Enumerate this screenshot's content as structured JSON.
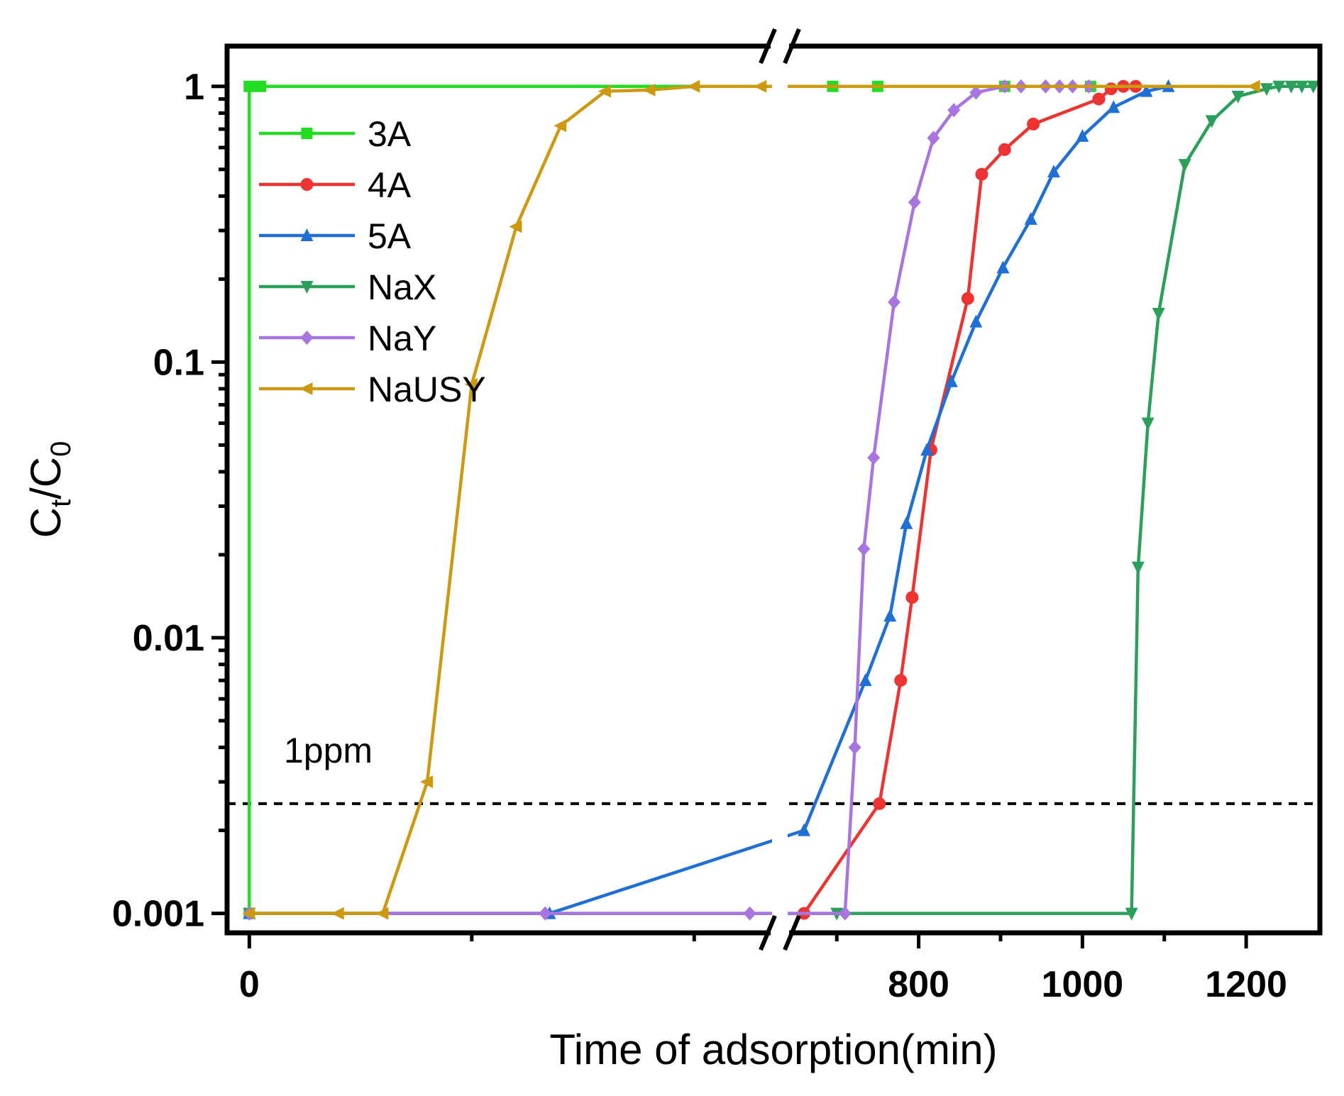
{
  "chart_data": {
    "type": "line",
    "title": "",
    "xlabel": "Time of adsorption(min)",
    "ylabel_main": "C",
    "ylabel_sub1": "t",
    "ylabel_mid": "/C",
    "ylabel_sub2": "0",
    "yscale": "log",
    "ylim": [
      0.00085,
      1.4
    ],
    "xaxis_break": {
      "before_range": [
        -10,
        235
      ],
      "after_range": [
        640,
        1290
      ]
    },
    "xticks_labeled": [
      "0",
      "800",
      "1000",
      "1200"
    ],
    "xtick_values": [
      0,
      800,
      1000,
      1200
    ],
    "yticks_labeled": [
      "1",
      "0.1",
      "0.01",
      "0.001"
    ],
    "ytick_values": [
      1,
      0.1,
      0.01,
      0.001
    ],
    "legend_position": "top-left",
    "threshold": {
      "value": 0.0025,
      "label": "1ppm"
    },
    "series": [
      {
        "name": "3A",
        "color": "#22dd22",
        "marker": "square",
        "x": [
          0,
          0,
          5,
          695,
          750,
          905,
          1010
        ],
        "y": [
          0.001,
          1,
          1,
          1,
          1,
          1,
          1
        ]
      },
      {
        "name": "4A",
        "color": "#ee3333",
        "marker": "circle",
        "x": [
          660,
          752,
          778,
          792,
          815,
          860,
          877,
          905,
          940,
          1020,
          1035,
          1050,
          1065
        ],
        "y": [
          0.001,
          0.0025,
          0.007,
          0.014,
          0.048,
          0.17,
          0.48,
          0.59,
          0.73,
          0.9,
          0.98,
          1,
          1
        ]
      },
      {
        "name": "5A",
        "color": "#1f6fd4",
        "marker": "triangle-up",
        "x": [
          0,
          135,
          660,
          735,
          765,
          785,
          810,
          840,
          870,
          903,
          937,
          965,
          1000,
          1038,
          1078,
          1105
        ],
        "y": [
          0.001,
          0.001,
          0.002,
          0.007,
          0.012,
          0.026,
          0.048,
          0.085,
          0.14,
          0.22,
          0.33,
          0.49,
          0.66,
          0.84,
          0.96,
          1
        ]
      },
      {
        "name": "NaX",
        "color": "#2aa05a",
        "marker": "triangle-down",
        "x": [
          0,
          700,
          1060,
          1068,
          1080,
          1093,
          1125,
          1158,
          1190,
          1225,
          1240,
          1255,
          1268,
          1282
        ],
        "y": [
          0.001,
          0.001,
          0.001,
          0.018,
          0.06,
          0.15,
          0.52,
          0.75,
          0.92,
          0.98,
          1,
          1,
          1,
          1
        ]
      },
      {
        "name": "NaY",
        "color": "#a875e0",
        "marker": "diamond",
        "x": [
          0,
          133,
          225,
          710,
          722,
          733,
          745,
          770,
          795,
          818,
          843,
          870,
          905,
          925,
          955,
          972,
          988,
          1008
        ],
        "y": [
          0.001,
          0.001,
          0.001,
          0.001,
          0.004,
          0.021,
          0.045,
          0.165,
          0.38,
          0.65,
          0.82,
          0.95,
          1,
          1,
          1,
          1,
          1,
          1
        ]
      },
      {
        "name": "NaUSY",
        "color": "#cc9911",
        "marker": "triangle-left",
        "x": [
          0,
          40,
          60,
          80,
          100,
          120,
          140,
          160,
          180,
          200,
          230,
          1210
        ],
        "y": [
          0.001,
          0.001,
          0.001,
          0.003,
          0.083,
          0.31,
          0.72,
          0.96,
          0.97,
          1,
          1,
          1
        ]
      }
    ]
  }
}
